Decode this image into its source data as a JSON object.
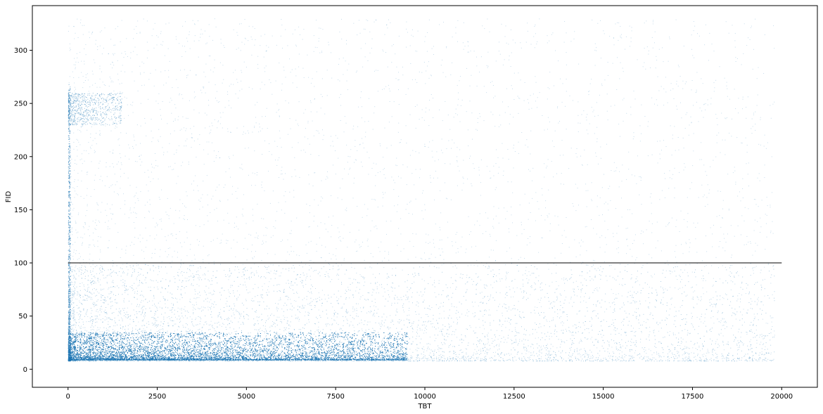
{
  "chart_data": {
    "type": "scatter",
    "title": "",
    "xlabel": "TBT",
    "ylabel": "FID",
    "xlim": [
      -1000,
      21000
    ],
    "ylim": [
      -17,
      342
    ],
    "xticks": [
      0,
      2500,
      5000,
      7500,
      10000,
      12500,
      15000,
      17500,
      20000
    ],
    "yticks": [
      0,
      50,
      100,
      150,
      200,
      250,
      300
    ],
    "grid": false,
    "legend": "none",
    "series": [
      {
        "kind": "points",
        "color": "#1f77b4",
        "description_of_density": "dense band FID 8-35 for TBT 0-9000; sparser cloud up to FID 330 across TBT 0-20000; cluster FID 230-260 near TBT 0-1500",
        "x_range": [
          0,
          20000
        ],
        "y_range": [
          0,
          335
        ]
      },
      {
        "kind": "reference_line",
        "color": "#000000",
        "x": [
          0,
          20000
        ],
        "y": [
          100,
          100
        ]
      }
    ]
  }
}
